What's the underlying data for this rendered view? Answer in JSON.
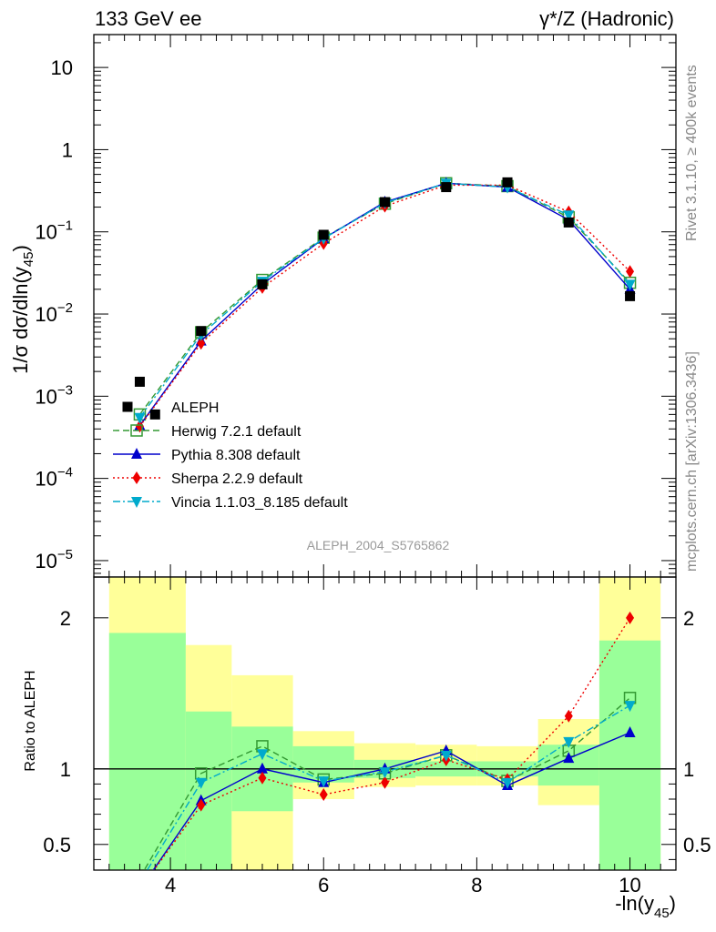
{
  "chart_data": {
    "type": "scatter",
    "title_left": "133 GeV ee",
    "title_right": "γ*/Z (Hadronic)",
    "ylabel_main": "1/σ dσ/dln(y45)",
    "ylabel_main_parts": {
      "prefix": "1/σ  dσ/dln(y",
      "sub": "45",
      "suffix": ")"
    },
    "ylabel_ratio": "Ratio to ALEPH",
    "xlabel_parts": {
      "prefix": "-ln(y",
      "sub": "45",
      "suffix": ")"
    },
    "side_text_top": "Rivet 3.1.10, ≥ 400k events",
    "side_text_bottom": "mcplots.cern.ch [arXiv:1306.3436]",
    "watermark": "ALEPH_2004_S5765862",
    "xlim": [
      3.0,
      10.6
    ],
    "ylim_main_log10": [
      -5.2,
      1.4
    ],
    "ylim_ratio": [
      0.33,
      2.27
    ],
    "x_ticks": [
      4,
      6,
      8,
      10
    ],
    "y_ticks_main": [
      {
        "exp": 1,
        "base": "10",
        "sup": ""
      },
      {
        "exp": 0,
        "base": "1",
        "sup": ""
      },
      {
        "exp": -1,
        "base": "10",
        "sup": "−1"
      },
      {
        "exp": -2,
        "base": "10",
        "sup": "−2"
      },
      {
        "exp": -3,
        "base": "10",
        "sup": "−3"
      },
      {
        "exp": -4,
        "base": "10",
        "sup": "−4"
      },
      {
        "exp": -5,
        "base": "10",
        "sup": "−5"
      }
    ],
    "y_ticks_ratio": [
      {
        "value": 0.5,
        "label": "0.5"
      },
      {
        "value": 1,
        "label": "1"
      },
      {
        "value": 2,
        "label": "2"
      }
    ],
    "data": {
      "name": "ALEPH",
      "x": [
        3.6,
        3.8,
        4.4,
        5.2,
        6.0,
        6.8,
        7.6,
        8.4,
        9.2,
        10.0
      ],
      "y": [
        0.0015,
        0.0006,
        0.0062,
        0.023,
        0.092,
        0.23,
        0.35,
        0.4,
        0.13,
        0.0165
      ]
    },
    "ratio_bands": [
      {
        "xlo": 3.2,
        "xhi": 4.2,
        "green": [
          0.33,
          1.9
        ],
        "yellow": [
          0.33,
          2.27
        ]
      },
      {
        "xlo": 4.2,
        "xhi": 4.8,
        "green": [
          0.33,
          1.38
        ],
        "yellow": [
          0.56,
          1.82
        ]
      },
      {
        "xlo": 4.8,
        "xhi": 5.6,
        "green": [
          0.72,
          1.28
        ],
        "yellow": [
          0.33,
          1.62
        ]
      },
      {
        "xlo": 5.6,
        "xhi": 6.4,
        "green": [
          0.91,
          1.15
        ],
        "yellow": [
          0.8,
          1.25
        ]
      },
      {
        "xlo": 6.4,
        "xhi": 7.2,
        "green": [
          0.94,
          1.06
        ],
        "yellow": [
          0.88,
          1.17
        ]
      },
      {
        "xlo": 7.2,
        "xhi": 8.0,
        "green": [
          0.95,
          1.05
        ],
        "yellow": [
          0.89,
          1.16
        ]
      },
      {
        "xlo": 8.0,
        "xhi": 8.8,
        "green": [
          0.95,
          1.05
        ],
        "yellow": [
          0.89,
          1.15
        ]
      },
      {
        "xlo": 8.8,
        "xhi": 9.6,
        "green": [
          0.89,
          1.16
        ],
        "yellow": [
          0.76,
          1.33
        ]
      },
      {
        "xlo": 9.6,
        "xhi": 10.4,
        "green": [
          0.33,
          1.85
        ],
        "yellow": [
          0.33,
          2.27
        ]
      }
    ],
    "series": [
      {
        "name": "Herwig 7.2.1 default",
        "color": "#339933",
        "marker": "open-square",
        "dash": "7,4",
        "x": [
          3.6,
          4.4,
          5.2,
          6.0,
          6.8,
          7.6,
          8.4,
          9.2,
          10.0
        ],
        "y": [
          0.0006,
          0.006,
          0.026,
          0.085,
          0.22,
          0.39,
          0.36,
          0.15,
          0.024
        ],
        "ratio": [
          0.28,
          0.97,
          1.15,
          0.93,
          0.97,
          1.09,
          0.92,
          1.12,
          1.47
        ]
      },
      {
        "name": "Pythia 8.308 default",
        "color": "#0000cc",
        "marker": "triangle-up",
        "dash": "",
        "x": [
          3.6,
          4.4,
          5.2,
          6.0,
          6.8,
          7.6,
          8.4,
          9.2,
          10.0
        ],
        "y": [
          0.00044,
          0.0047,
          0.023,
          0.083,
          0.23,
          0.39,
          0.35,
          0.14,
          0.02
        ],
        "ratio": [
          0.2,
          0.79,
          1.0,
          0.91,
          1.0,
          1.12,
          0.89,
          1.07,
          1.24
        ]
      },
      {
        "name": "Sherpa 2.2.9 default",
        "color": "#ee0000",
        "marker": "diamond",
        "dash": "2,3",
        "x": [
          3.6,
          4.4,
          5.2,
          6.0,
          6.8,
          7.6,
          8.4,
          9.2,
          10.0
        ],
        "y": [
          0.00043,
          0.0044,
          0.021,
          0.072,
          0.205,
          0.37,
          0.37,
          0.175,
          0.033
        ],
        "ratio": [
          0.2,
          0.76,
          0.94,
          0.83,
          0.91,
          1.06,
          0.93,
          1.35,
          2.0
        ]
      },
      {
        "name": "Vincia 1.1.03_8.185 default",
        "color": "#00aacc",
        "marker": "triangle-down",
        "dash": "8,3,2,3",
        "x": [
          3.6,
          4.4,
          5.2,
          6.0,
          6.8,
          7.6,
          8.4,
          9.2,
          10.0
        ],
        "y": [
          0.00055,
          0.0056,
          0.025,
          0.083,
          0.225,
          0.39,
          0.35,
          0.16,
          0.023
        ],
        "ratio": [
          0.25,
          0.91,
          1.1,
          0.92,
          0.98,
          1.09,
          0.91,
          1.18,
          1.42
        ]
      }
    ]
  }
}
